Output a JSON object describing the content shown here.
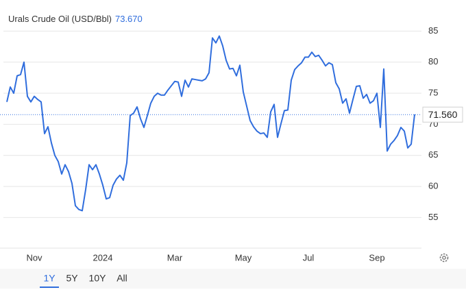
{
  "chart_data": {
    "type": "line",
    "title": "Urals Crude Oil (USD/Bbl)",
    "headline_value": "73.670",
    "color": "#2f6ddd",
    "categories": [
      null,
      null,
      null,
      null,
      null,
      null,
      null,
      null,
      "Nov",
      null,
      null,
      null,
      null,
      null,
      null,
      null,
      null,
      null,
      null,
      null,
      null,
      null,
      null,
      null,
      null,
      null,
      null,
      null,
      "2024",
      null,
      null,
      null,
      null,
      null,
      null,
      null,
      null,
      null,
      null,
      null,
      null,
      null,
      null,
      null,
      null,
      null,
      null,
      null,
      null,
      "Mar",
      null,
      null,
      null,
      null,
      null,
      null,
      null,
      null,
      null,
      null,
      null,
      null,
      null,
      null,
      null,
      null,
      null,
      null,
      null,
      "May",
      null,
      null,
      null,
      null,
      null,
      null,
      null,
      null,
      null,
      null,
      null,
      null,
      null,
      null,
      null,
      null,
      null,
      null,
      "Jul",
      null,
      null,
      null,
      null,
      null,
      null,
      null,
      null,
      null,
      null,
      null,
      null,
      null,
      null,
      null,
      null,
      null,
      null,
      null,
      "Sep",
      null,
      null,
      null,
      null,
      null,
      null,
      null,
      null,
      null,
      null,
      null
    ],
    "values": [
      73.6,
      76,
      75,
      77.8,
      78,
      80,
      74.5,
      73.6,
      74.5,
      74,
      73.6,
      68.5,
      69.6,
      67,
      65,
      64,
      62,
      63.5,
      62.4,
      60.5,
      56.9,
      56.3,
      56.1,
      59.5,
      63.5,
      62.7,
      63.5,
      62,
      60.2,
      58,
      58.2,
      60.2,
      61.2,
      61.8,
      61,
      63.8,
      71.4,
      71.8,
      72.8,
      70.9,
      69.5,
      71.4,
      73.4,
      74.5,
      75,
      74.7,
      74.7,
      75.5,
      76.2,
      76.9,
      76.8,
      74.5,
      77.1,
      76,
      77.3,
      77.2,
      77.1,
      77,
      77.3,
      78.3,
      83.9,
      83.1,
      84.2,
      82.6,
      80.3,
      78.9,
      79,
      77.8,
      79.5,
      75.2,
      72.9,
      70.6,
      69.6,
      68.9,
      68.5,
      68.6,
      67.9,
      72,
      73.2,
      67.9,
      70.1,
      72.2,
      72.3,
      77.1,
      78.8,
      79.4,
      79.9,
      80.8,
      80.8,
      81.6,
      80.9,
      81.1,
      80.3,
      79.4,
      79.9,
      79.6,
      76.7,
      75.7,
      73.4,
      74.1,
      71.8,
      74,
      76.1,
      76.2,
      74.2,
      74.8,
      73.4,
      73.8,
      75,
      69.5,
      78.9,
      65.7,
      66.8,
      67.4,
      68.2,
      69.5,
      68.9,
      66.2,
      66.8,
      71.6
    ],
    "ylim": [
      50,
      90
    ],
    "yticks": [
      55,
      60,
      65,
      70,
      75,
      80,
      85
    ],
    "grid": true,
    "reference_line": {
      "value": 71.56,
      "label": "71.560"
    },
    "ranges": [
      "1Y",
      "5Y",
      "10Y",
      "All"
    ],
    "active_range": "1Y"
  }
}
